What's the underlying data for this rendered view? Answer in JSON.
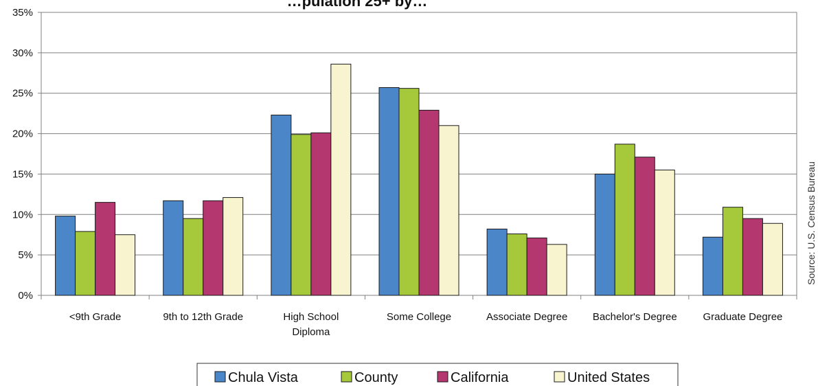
{
  "chart_data": {
    "type": "bar",
    "title": "…pulation 25+ by…",
    "categories": [
      [
        "<9th Grade"
      ],
      [
        "9th to 12th Grade"
      ],
      [
        "High School",
        "Diploma"
      ],
      [
        "Some College"
      ],
      [
        "Associate Degree"
      ],
      [
        "Bachelor's Degree"
      ],
      [
        "Graduate Degree"
      ]
    ],
    "series": [
      {
        "name": "Chula Vista",
        "color": "#4a86c8",
        "values": [
          9.8,
          11.7,
          22.3,
          25.7,
          8.2,
          15.0,
          7.2
        ]
      },
      {
        "name": "County",
        "color": "#a5c93a",
        "values": [
          7.9,
          9.5,
          19.9,
          25.6,
          7.6,
          18.7,
          10.9
        ]
      },
      {
        "name": "California",
        "color": "#b5376f",
        "values": [
          11.5,
          11.7,
          20.1,
          22.9,
          7.1,
          17.1,
          9.5
        ]
      },
      {
        "name": "United States",
        "color": "#f8f4d0",
        "values": [
          7.5,
          12.1,
          28.6,
          21.0,
          6.3,
          15.5,
          8.9
        ]
      }
    ],
    "ylim": [
      0,
      35
    ],
    "yticks": [
      0,
      5,
      10,
      15,
      20,
      25,
      30,
      35
    ],
    "ytick_suffix": "%",
    "grid": true,
    "legend_position": "bottom-center",
    "source": "Source: U.S. Census Bureau"
  }
}
